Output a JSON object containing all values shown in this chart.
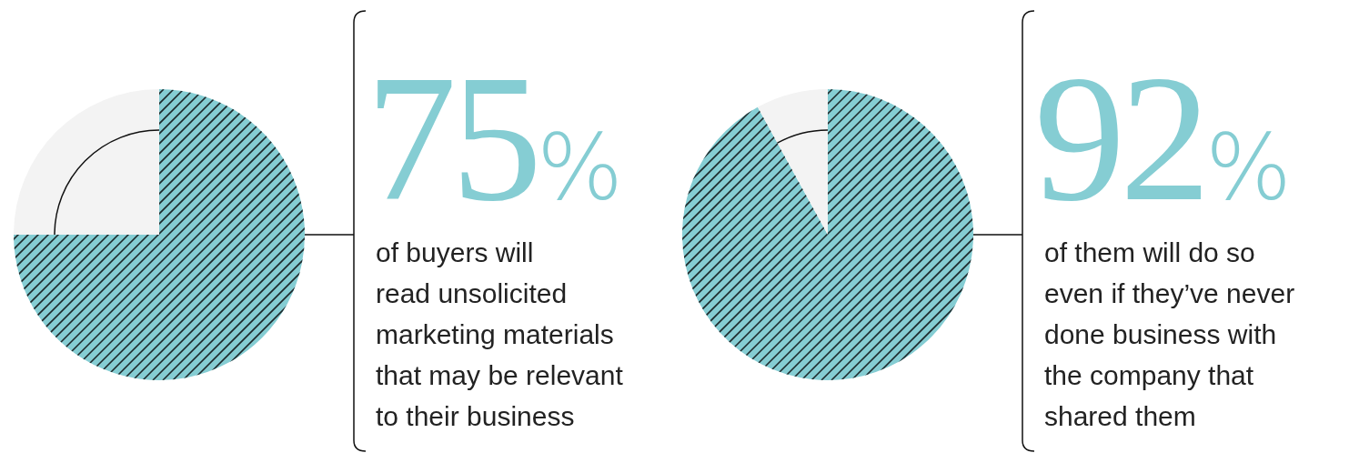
{
  "chart_data": [
    {
      "type": "pie",
      "categories": [
        null,
        null
      ],
      "values": [
        75,
        25
      ],
      "colors": [
        "#85cdd3",
        "#f3f3f3"
      ],
      "value_labels": [
        "75%",
        null
      ],
      "annotations": [
        "of buyers will\nread unsolicited\nmarketing materials\nthat may be relevant\nto their business"
      ]
    },
    {
      "type": "pie",
      "categories": [
        null,
        null
      ],
      "values": [
        92,
        8
      ],
      "colors": [
        "#85cdd3",
        "#f3f3f3"
      ],
      "value_labels": [
        "92%",
        null
      ],
      "annotations": [
        "of them will do so\neven if they’ve never\ndone business with\nthe company that\nshared them"
      ]
    }
  ]
}
